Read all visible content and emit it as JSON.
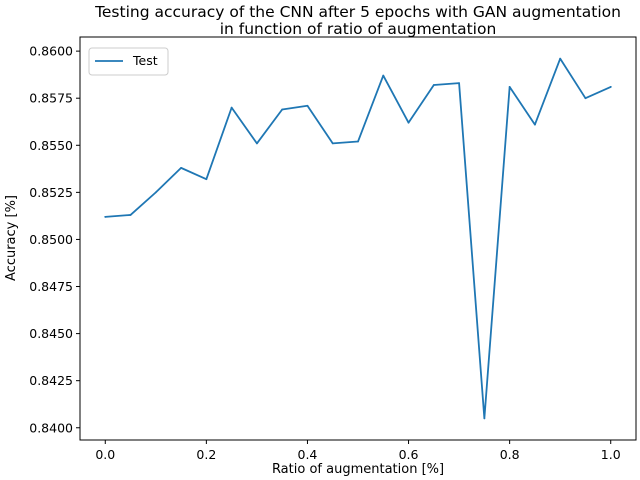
{
  "chart_data": {
    "type": "line",
    "title_line1": "Testing accuracy of the CNN after 5 epochs with GAN augmentation",
    "title_line2": "in function of ratio of augmentation",
    "xlabel": "Ratio of augmentation [%]",
    "ylabel": "Accuracy [%]",
    "xlim": [
      -0.05,
      1.05
    ],
    "ylim": [
      0.83935,
      0.86075
    ],
    "x_ticks": [
      "0.0",
      "0.2",
      "0.4",
      "0.6",
      "0.8",
      "1.0"
    ],
    "y_ticks": [
      "0.8400",
      "0.8425",
      "0.8450",
      "0.8475",
      "0.8500",
      "0.8525",
      "0.8550",
      "0.8575",
      "0.8600"
    ],
    "grid": false,
    "legend_position": "top-left",
    "series": [
      {
        "name": "Test",
        "color": "#1f77b4",
        "x": [
          0.0,
          0.05,
          0.1,
          0.15,
          0.2,
          0.25,
          0.3,
          0.35,
          0.4,
          0.45,
          0.5,
          0.55,
          0.6,
          0.65,
          0.7,
          0.75,
          0.8,
          0.85,
          0.9,
          0.95,
          1.0
        ],
        "y": [
          0.8512,
          0.8513,
          0.8525,
          0.8538,
          0.8532,
          0.857,
          0.8551,
          0.8569,
          0.8571,
          0.8551,
          0.8552,
          0.8587,
          0.8562,
          0.8582,
          0.8583,
          0.8405,
          0.8581,
          0.8561,
          0.8596,
          0.8575,
          0.8581
        ]
      }
    ]
  }
}
